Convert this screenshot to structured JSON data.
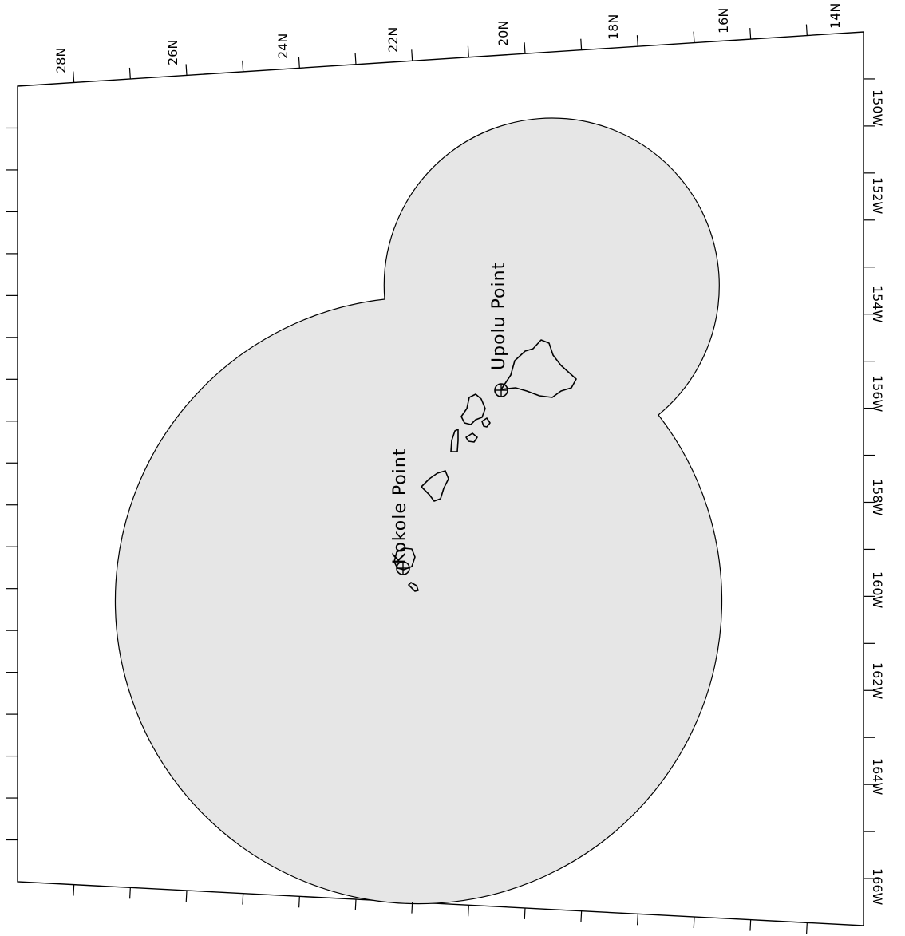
{
  "map": {
    "orientation": "rotated 90 degrees",
    "colors": {
      "coverage_fill": "#e6e6e6",
      "background": "#ffffff",
      "ink": "#000000"
    },
    "latitude_labels": [
      "28N",
      "26N",
      "24N",
      "22N",
      "20N",
      "18N",
      "16N",
      "14N"
    ],
    "longitude_labels": [
      "150W",
      "152W",
      "154W",
      "156W",
      "158W",
      "160W",
      "162W",
      "164W",
      "166W"
    ],
    "places": [
      {
        "label": "Kokole Point",
        "marker": "crosshair-circle"
      },
      {
        "label": "Upolu Point",
        "marker": "crosshair-circle"
      }
    ]
  }
}
